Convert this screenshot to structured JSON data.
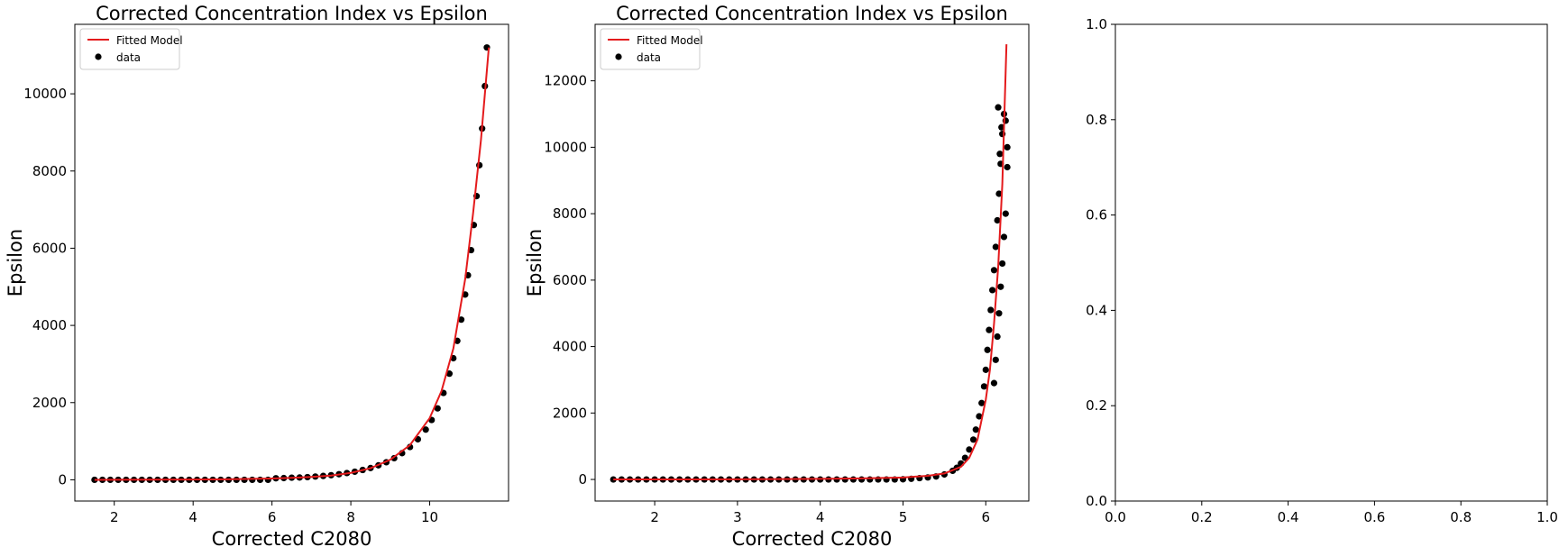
{
  "chart_data": [
    {
      "type": "scatter",
      "title": "Corrected Concentration Index vs Epsilon",
      "xlabel": "Corrected C2080",
      "ylabel": "Epsilon",
      "xlim": [
        1.0,
        12.0
      ],
      "ylim": [
        -550,
        11800
      ],
      "xticks": [
        2,
        4,
        6,
        8,
        10
      ],
      "yticks": [
        0,
        2000,
        4000,
        6000,
        8000,
        10000
      ],
      "legend": {
        "position": "top-left",
        "entries": [
          "Fitted Model",
          "data"
        ]
      },
      "colors": {
        "fit": "#e41a1c",
        "data": "#000000"
      },
      "series": [
        {
          "name": "Fitted Model",
          "kind": "line",
          "x": [
            1.5,
            2.0,
            3.0,
            4.0,
            5.0,
            6.0,
            6.5,
            7.0,
            7.5,
            8.0,
            8.5,
            9.0,
            9.5,
            10.0,
            10.3,
            10.6,
            10.9,
            11.1,
            11.3,
            11.5
          ],
          "y": [
            0,
            2,
            5,
            8,
            15,
            35,
            50,
            75,
            110,
            180,
            300,
            520,
            900,
            1600,
            2300,
            3400,
            5200,
            6900,
            8800,
            11200
          ]
        },
        {
          "name": "data",
          "kind": "scatter",
          "x": [
            1.5,
            1.7,
            1.9,
            2.1,
            2.3,
            2.5,
            2.7,
            2.9,
            3.1,
            3.3,
            3.5,
            3.7,
            3.9,
            4.1,
            4.3,
            4.5,
            4.7,
            4.9,
            5.1,
            5.3,
            5.5,
            5.7,
            5.9,
            6.1,
            6.3,
            6.5,
            6.7,
            6.9,
            7.1,
            7.3,
            7.5,
            7.7,
            7.9,
            8.1,
            8.3,
            8.5,
            8.7,
            8.9,
            9.1,
            9.3,
            9.5,
            9.7,
            9.9,
            10.05,
            10.2,
            10.35,
            10.5,
            10.6,
            10.7,
            10.8,
            10.9,
            10.97,
            11.05,
            11.12,
            11.19,
            11.26,
            11.33,
            11.4,
            11.45
          ],
          "y": [
            0,
            0,
            0,
            0,
            0,
            0,
            0,
            0,
            0,
            0,
            0,
            0,
            0,
            0,
            0,
            0,
            0,
            0,
            0,
            0,
            0,
            0,
            0,
            40,
            45,
            55,
            60,
            70,
            85,
            100,
            120,
            145,
            175,
            210,
            255,
            305,
            375,
            455,
            560,
            690,
            850,
            1050,
            1300,
            1550,
            1850,
            2250,
            2750,
            3150,
            3600,
            4150,
            4800,
            5300,
            5950,
            6600,
            7350,
            8150,
            9100,
            10200,
            11200
          ]
        }
      ]
    },
    {
      "type": "scatter",
      "title": "Corrected Concentration Index vs Epsilon",
      "xlabel": "Corrected C2080",
      "ylabel": "Epsilon",
      "xlim": [
        1.28,
        6.52
      ],
      "ylim": [
        -650,
        13700
      ],
      "xticks": [
        2,
        3,
        4,
        5,
        6
      ],
      "yticks": [
        0,
        2000,
        4000,
        6000,
        8000,
        10000,
        12000
      ],
      "legend": {
        "position": "top-left",
        "entries": [
          "Fitted Model",
          "data"
        ]
      },
      "colors": {
        "fit": "#e41a1c",
        "data": "#000000"
      },
      "series": [
        {
          "name": "Fitted Model",
          "kind": "line",
          "x": [
            1.5,
            2.0,
            2.5,
            3.0,
            3.5,
            4.0,
            4.5,
            5.0,
            5.3,
            5.5,
            5.7,
            5.8,
            5.9,
            6.0,
            6.05,
            6.1,
            6.15,
            6.2,
            6.25
          ],
          "y": [
            0,
            0,
            2,
            5,
            10,
            18,
            30,
            60,
            110,
            180,
            380,
            650,
            1200,
            2400,
            3300,
            4700,
            6400,
            8900,
            13100
          ]
        },
        {
          "name": "data",
          "kind": "scatter",
          "x": [
            1.5,
            1.6,
            1.7,
            1.8,
            1.9,
            2.0,
            2.1,
            2.2,
            2.3,
            2.4,
            2.5,
            2.6,
            2.7,
            2.8,
            2.9,
            3.0,
            3.1,
            3.2,
            3.3,
            3.4,
            3.5,
            3.6,
            3.7,
            3.8,
            3.9,
            4.0,
            4.1,
            4.2,
            4.3,
            4.4,
            4.5,
            4.6,
            4.7,
            4.8,
            4.9,
            5.0,
            5.1,
            5.2,
            5.3,
            5.4,
            5.5,
            5.6,
            5.65,
            5.7,
            5.75,
            5.8,
            5.85,
            5.88,
            5.92,
            5.95,
            5.98,
            6.0,
            6.02,
            6.04,
            6.06,
            6.08,
            6.1,
            6.12,
            6.14,
            6.16,
            6.18,
            6.2,
            6.22,
            6.24,
            6.26,
            6.1,
            6.12,
            6.14,
            6.16,
            6.18,
            6.2,
            6.22,
            6.24,
            6.26,
            6.15,
            6.17,
            6.19
          ],
          "y": [
            0,
            0,
            0,
            0,
            0,
            0,
            0,
            0,
            0,
            0,
            0,
            0,
            0,
            0,
            0,
            0,
            0,
            0,
            0,
            0,
            0,
            0,
            0,
            0,
            0,
            0,
            0,
            0,
            0,
            0,
            0,
            0,
            0,
            0,
            0,
            5,
            20,
            40,
            60,
            90,
            150,
            260,
            350,
            480,
            650,
            900,
            1200,
            1500,
            1900,
            2300,
            2800,
            3300,
            3900,
            4500,
            5100,
            5700,
            6300,
            7000,
            7800,
            8600,
            9500,
            10400,
            11000,
            10800,
            10000,
            2900,
            3600,
            4300,
            5000,
            5800,
            6500,
            7300,
            8000,
            9400,
            11200,
            9800,
            10600
          ]
        }
      ]
    },
    {
      "type": "scatter",
      "title": "",
      "xlabel": "",
      "ylabel": "",
      "xlim": [
        0.0,
        1.0
      ],
      "ylim": [
        0.0,
        1.0
      ],
      "xticks": [
        0.0,
        0.2,
        0.4,
        0.6,
        0.8,
        1.0
      ],
      "yticks": [
        0.0,
        0.2,
        0.4,
        0.6,
        0.8,
        1.0
      ],
      "series": []
    }
  ]
}
